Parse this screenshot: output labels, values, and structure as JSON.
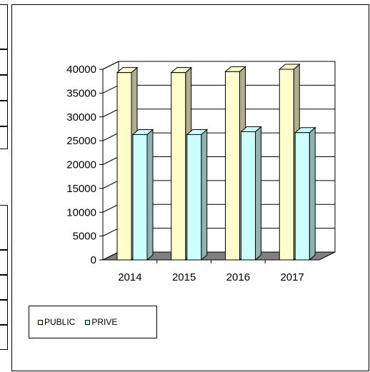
{
  "chart_data": {
    "type": "bar",
    "categories": [
      "2014",
      "2015",
      "2016",
      "2017"
    ],
    "series": [
      {
        "name": "PUBLIC",
        "values": [
          39300,
          39300,
          39500,
          40000
        ],
        "color": "#ffffcc"
      },
      {
        "name": "PRIVE",
        "values": [
          26300,
          26300,
          26900,
          26700
        ],
        "color": "#ccffff"
      }
    ],
    "ylim": [
      0,
      40000
    ],
    "yticks": [
      "0",
      "5000",
      "10000",
      "15000",
      "20000",
      "25000",
      "30000",
      "35000",
      "40000"
    ],
    "grid": true,
    "legend_position": "bottom-left"
  },
  "colors": {
    "wall": "#ffffff",
    "floor": "#808080",
    "public_side": "#b3ad8f",
    "prive_side": "#8fb3b3"
  }
}
